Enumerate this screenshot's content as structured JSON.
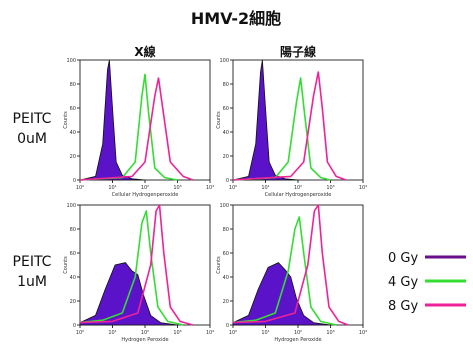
{
  "title": "HMV-2細胞",
  "column_headers": [
    "X線",
    "陽子線"
  ],
  "row_labels": [
    {
      "line1": "PEITC",
      "line2": "0uM"
    },
    {
      "line1": "PEITC",
      "line2": "1uM"
    }
  ],
  "x_axis_labels": [
    "Cellular Hydrogenperoxide",
    "Hydrogen Peroxide"
  ],
  "y_axis_label": "Counts",
  "x_tick_labels": [
    "10⁰",
    "10¹",
    "10²",
    "10³",
    "10⁴"
  ],
  "y_tick_labels": [
    "0",
    "20",
    "40",
    "60",
    "80",
    "100"
  ],
  "legend": [
    {
      "label": "0 Gy",
      "color": "#6a0d8a"
    },
    {
      "label": "4 Gy",
      "color": "#33dd33"
    },
    {
      "label": "8 Gy",
      "color": "#ee2299"
    }
  ],
  "colors": {
    "fill_0gy": "#5a13c8",
    "line_0gy": "#111111",
    "line_4gy": "#33dd33",
    "line_8gy": "#ee2299"
  },
  "chart_data": {
    "type": "area",
    "x_scale": "log",
    "xlim": [
      1,
      10000
    ],
    "ylim": [
      0,
      100
    ],
    "panels": [
      {
        "row": "PEITC 0uM",
        "column": "X線",
        "series": [
          {
            "name": "0 Gy",
            "x": [
              1,
              3,
              5,
              7,
              8,
              10,
              13,
              20,
              40,
              100
            ],
            "y": [
              0,
              3,
              30,
              92,
              100,
              60,
              15,
              4,
              1,
              0
            ]
          },
          {
            "name": "4 Gy",
            "x": [
              1,
              20,
              50,
              80,
              100,
              130,
              200,
              400,
              1000
            ],
            "y": [
              0,
              2,
              15,
              70,
              88,
              55,
              10,
              2,
              0
            ]
          },
          {
            "name": "8 Gy",
            "x": [
              1,
              40,
              100,
              200,
              260,
              350,
              600,
              1500,
              3000
            ],
            "y": [
              0,
              3,
              15,
              70,
              85,
              60,
              15,
              3,
              0
            ]
          }
        ]
      },
      {
        "row": "PEITC 0uM",
        "column": "陽子線",
        "series": [
          {
            "name": "0 Gy",
            "x": [
              1,
              3,
              5,
              7,
              8,
              10,
              13,
              20,
              40,
              100
            ],
            "y": [
              0,
              3,
              30,
              90,
              100,
              60,
              15,
              4,
              1,
              0
            ]
          },
          {
            "name": "4 Gy",
            "x": [
              1,
              20,
              50,
              90,
              120,
              160,
              250,
              500,
              1000
            ],
            "y": [
              0,
              2,
              15,
              65,
              85,
              55,
              10,
              2,
              0
            ]
          },
          {
            "name": "8 Gy",
            "x": [
              1,
              60,
              150,
              300,
              420,
              560,
              800,
              1500,
              3000
            ],
            "y": [
              0,
              3,
              15,
              70,
              90,
              60,
              15,
              3,
              0
            ]
          }
        ]
      },
      {
        "row": "PEITC 1uM",
        "column": "X線",
        "series": [
          {
            "name": "0 Gy",
            "x": [
              1,
              3,
              6,
              12,
              25,
              40,
              60,
              90,
              150,
              300,
              1000
            ],
            "y": [
              2,
              8,
              30,
              50,
              52,
              45,
              42,
              25,
              8,
              2,
              0
            ]
          },
          {
            "name": "4 Gy",
            "x": [
              1,
              5,
              20,
              50,
              80,
              110,
              150,
              250,
              500,
              1500
            ],
            "y": [
              2,
              4,
              10,
              40,
              85,
              95,
              60,
              15,
              3,
              0
            ]
          },
          {
            "name": "8 Gy",
            "x": [
              1,
              10,
              60,
              150,
              220,
              280,
              380,
              600,
              1200,
              3000
            ],
            "y": [
              2,
              3,
              10,
              50,
              95,
              105,
              60,
              15,
              3,
              0
            ]
          }
        ]
      },
      {
        "row": "PEITC 1uM",
        "column": "陽子線",
        "series": [
          {
            "name": "0 Gy",
            "x": [
              1,
              3,
              6,
              12,
              25,
              40,
              60,
              90,
              150,
              300,
              1000
            ],
            "y": [
              2,
              8,
              30,
              48,
              52,
              46,
              40,
              22,
              8,
              2,
              0
            ]
          },
          {
            "name": "4 Gy",
            "x": [
              1,
              5,
              20,
              50,
              80,
              110,
              150,
              250,
              500,
              1500
            ],
            "y": [
              2,
              4,
              10,
              45,
              80,
              90,
              60,
              15,
              3,
              0
            ]
          },
          {
            "name": "8 Gy",
            "x": [
              1,
              10,
              80,
              200,
              320,
              420,
              560,
              900,
              1800,
              3500
            ],
            "y": [
              2,
              3,
              10,
              50,
              95,
              100,
              60,
              15,
              3,
              0
            ]
          }
        ]
      }
    ]
  }
}
